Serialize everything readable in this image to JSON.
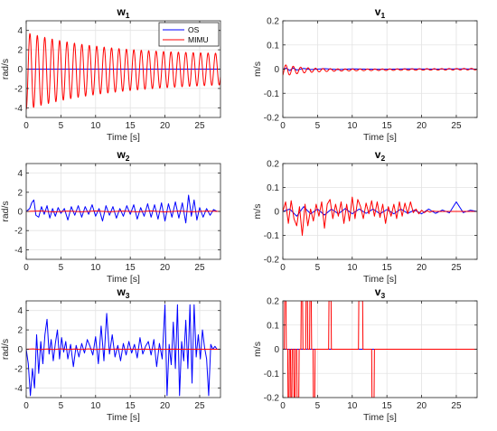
{
  "figure": {
    "background": "#ffffff"
  },
  "colors": {
    "OS": "#0000ff",
    "MIMU": "#ff0000",
    "grid": "#e3e3e3",
    "axis": "#262626"
  },
  "chart_data": [
    {
      "type": "line",
      "title": "w",
      "title_subscript": "1",
      "xlabel": "Time [s]",
      "ylabel": "rad/s",
      "xlim": [
        0,
        28
      ],
      "ylim": [
        -5,
        5
      ],
      "xticks": [
        0,
        5,
        10,
        15,
        20,
        25
      ],
      "yticks": [
        4,
        2,
        0,
        -2,
        -4
      ],
      "grid": true,
      "legend": {
        "position": "top-right",
        "entries": [
          "OS",
          "MIMU"
        ]
      },
      "series": [
        {
          "name": "OS",
          "color": "#0000ff",
          "x": [
            0,
            28
          ],
          "y": [
            0,
            0
          ],
          "note_overlap": ""
        },
        {
          "name": "MIMU",
          "color": "#ff0000",
          "signal": {
            "kind": "damped_sine",
            "amplitude": 4.0,
            "offset_start": -0.2,
            "offset_end": 0.0,
            "period": 1.07,
            "decay_floor": 0.35,
            "decay_rate": 0.085,
            "phase_start": 0.0
          }
        }
      ]
    },
    {
      "type": "line",
      "title": "v",
      "title_subscript": "1",
      "xlabel": "Time [s]",
      "ylabel": "m/s",
      "xlim": [
        0,
        28
      ],
      "ylim": [
        -0.2,
        0.2
      ],
      "xticks": [
        0,
        5,
        10,
        15,
        20,
        25
      ],
      "yticks": [
        0.2,
        0.1,
        0,
        -0.1,
        -0.2
      ],
      "grid": true,
      "series": [
        {
          "name": "OS",
          "color": "#0000ff",
          "x": [
            0,
            0.5,
            1,
            1.5,
            2,
            3,
            4,
            6,
            8,
            10,
            14,
            18,
            22,
            26,
            28
          ],
          "y": [
            0,
            0.004,
            -0.006,
            0.005,
            -0.004,
            0.003,
            -0.002,
            0.002,
            -0.002,
            0.001,
            -0.001,
            0.001,
            0,
            0.001,
            0
          ]
        },
        {
          "name": "MIMU",
          "color": "#ff0000",
          "signal": {
            "kind": "damped_sine",
            "amplitude": 0.025,
            "offset_start": -0.005,
            "offset_end": 0.0,
            "period": 1.07,
            "decay_floor": 0.12,
            "decay_rate": 0.32,
            "phase_start": 0.6
          }
        }
      ]
    },
    {
      "type": "line",
      "title": "w",
      "title_subscript": "2",
      "xlabel": "Time [s]",
      "ylabel": "rad/s",
      "xlim": [
        0,
        28
      ],
      "ylim": [
        -5,
        5
      ],
      "xticks": [
        0,
        5,
        10,
        15,
        20,
        25
      ],
      "yticks": [
        4,
        2,
        0,
        -2,
        -4
      ],
      "grid": true,
      "series": [
        {
          "name": "OS",
          "color": "#0000ff",
          "x": [
            0,
            0.5,
            0.8,
            1.1,
            1.4,
            1.8,
            2.2,
            2.6,
            3.0,
            3.4,
            3.8,
            4.2,
            4.6,
            5.0,
            5.5,
            6.0,
            6.5,
            7.0,
            7.5,
            8.0,
            8.5,
            9.0,
            9.5,
            10.0,
            10.5,
            11.0,
            11.5,
            12.0,
            12.5,
            13.0,
            13.5,
            14.0,
            14.5,
            15.0,
            15.5,
            16.0,
            16.5,
            17.0,
            17.5,
            18.0,
            18.5,
            19.0,
            19.5,
            20.0,
            20.5,
            21.0,
            21.5,
            22.0,
            22.5,
            23.0,
            23.4,
            23.8,
            24.2,
            24.6,
            25.0,
            25.5,
            26.0,
            26.5,
            27.0,
            27.5
          ],
          "y": [
            0,
            0.3,
            0.9,
            1.2,
            -0.4,
            -0.6,
            0.5,
            -0.3,
            0.6,
            -0.7,
            0.3,
            -0.5,
            0.4,
            -0.2,
            0.3,
            -0.9,
            0.5,
            -0.4,
            0.6,
            -0.6,
            0.5,
            -0.3,
            0.7,
            -0.5,
            0.3,
            -1.0,
            0.6,
            -0.4,
            0.5,
            -0.7,
            0.3,
            -0.5,
            0.6,
            -0.3,
            0.7,
            -0.8,
            0.4,
            -0.5,
            0.8,
            -0.6,
            0.7,
            -0.8,
            0.9,
            -1.0,
            0.8,
            -0.6,
            1.0,
            -0.7,
            0.9,
            -1.2,
            1.7,
            -0.5,
            1.2,
            -0.9,
            0.4,
            -0.6,
            0.3,
            -0.4,
            0.2,
            0.0
          ]
        },
        {
          "name": "MIMU",
          "color": "#ff0000",
          "x": [
            0,
            2,
            4,
            6,
            8,
            10,
            12,
            14,
            16,
            18,
            20,
            22,
            24,
            26,
            28
          ],
          "y": [
            0,
            0.05,
            -0.05,
            0.04,
            -0.04,
            0.05,
            -0.03,
            0.04,
            -0.04,
            0.05,
            -0.05,
            0.04,
            -0.03,
            0.03,
            0
          ]
        }
      ]
    },
    {
      "type": "line",
      "title": "v",
      "title_subscript": "2",
      "xlabel": "Time [s]",
      "ylabel": "m/s",
      "xlim": [
        0,
        28
      ],
      "ylim": [
        -0.2,
        0.2
      ],
      "xticks": [
        0,
        5,
        10,
        15,
        20,
        25
      ],
      "yticks": [
        0.2,
        0.1,
        0,
        -0.1,
        -0.2
      ],
      "grid": true,
      "series": [
        {
          "name": "OS",
          "color": "#0000ff",
          "x": [
            0,
            1,
            2,
            3,
            4,
            5,
            6,
            7,
            8,
            9,
            10,
            11,
            12,
            13,
            14,
            15,
            16,
            17,
            18,
            19,
            20,
            21,
            22,
            23,
            24,
            25,
            26,
            27,
            28
          ],
          "y": [
            0,
            0.01,
            -0.02,
            0.02,
            -0.01,
            0.01,
            -0.015,
            0.01,
            -0.01,
            0.012,
            -0.01,
            0.01,
            -0.008,
            0.01,
            -0.01,
            0.008,
            -0.01,
            0.01,
            -0.008,
            0.006,
            -0.01,
            0.01,
            -0.008,
            0.006,
            -0.006,
            0.04,
            -0.005,
            0.005,
            0
          ]
        },
        {
          "name": "MIMU",
          "color": "#ff0000",
          "x": [
            0,
            0.4,
            0.8,
            1.2,
            1.6,
            2.0,
            2.4,
            2.8,
            3.2,
            3.6,
            4.0,
            4.4,
            4.8,
            5.2,
            5.6,
            6.0,
            6.4,
            6.8,
            7.2,
            7.6,
            8.0,
            8.4,
            8.8,
            9.2,
            9.6,
            10.0,
            10.4,
            10.8,
            11.2,
            11.6,
            12.0,
            12.4,
            12.8,
            13.2,
            13.6,
            14.0,
            14.4,
            14.8,
            15.2,
            15.6,
            16.0,
            16.4,
            16.8,
            17.2,
            17.6,
            18.0,
            18.4,
            18.8,
            19.2,
            19.6,
            20.0,
            20.4,
            20.8,
            21.2,
            21.6,
            22.0,
            23.0,
            24.0,
            25.0,
            26.0,
            27.0,
            28.0
          ],
          "y": [
            0,
            0.04,
            -0.05,
            0.045,
            -0.03,
            -0.06,
            0.02,
            -0.1,
            0.03,
            -0.06,
            0.01,
            -0.04,
            0.03,
            -0.02,
            0.04,
            -0.07,
            0.03,
            0.05,
            -0.03,
            0.03,
            -0.02,
            0.04,
            -0.05,
            0.03,
            -0.04,
            0.06,
            -0.03,
            0.05,
            0.02,
            -0.03,
            0.035,
            -0.01,
            0.045,
            -0.02,
            0.04,
            -0.025,
            0.03,
            -0.05,
            0.02,
            -0.02,
            0.03,
            -0.03,
            0.04,
            -0.02,
            0.035,
            -0.01,
            0.04,
            -0.005,
            0.01,
            -0.01,
            0.005,
            -0.005,
            0.003,
            -0.003,
            0.002,
            0,
            0,
            0,
            0,
            0,
            0,
            0
          ]
        }
      ]
    },
    {
      "type": "line",
      "title": "w",
      "title_subscript": "3",
      "xlabel": "Time [s]",
      "ylabel": "rad/s",
      "xlim": [
        0,
        28
      ],
      "ylim": [
        -5,
        5
      ],
      "xticks": [
        0,
        5,
        10,
        15,
        20,
        25
      ],
      "yticks": [
        4,
        2,
        0,
        -2,
        -4
      ],
      "grid": true,
      "series": [
        {
          "name": "OS",
          "color": "#0000ff",
          "x": [
            0,
            0.3,
            0.6,
            0.9,
            1.2,
            1.5,
            1.8,
            2.1,
            2.4,
            2.7,
            3.0,
            3.3,
            3.6,
            3.9,
            4.2,
            4.5,
            4.8,
            5.1,
            5.4,
            5.7,
            6.0,
            6.4,
            6.8,
            7.2,
            7.6,
            8.0,
            8.4,
            8.8,
            9.2,
            9.6,
            10.0,
            10.4,
            10.8,
            11.2,
            11.6,
            12.0,
            12.4,
            12.8,
            13.2,
            13.6,
            14.0,
            14.4,
            14.8,
            15.2,
            15.6,
            16.0,
            16.4,
            16.8,
            17.2,
            17.6,
            18.0,
            18.4,
            18.8,
            19.2,
            19.6,
            20.0,
            20.3,
            20.6,
            20.9,
            21.2,
            21.5,
            21.8,
            22.1,
            22.4,
            22.7,
            23.0,
            23.3,
            23.6,
            23.9,
            24.2,
            24.5,
            24.8,
            25.1,
            25.4,
            25.7,
            26.0,
            26.3,
            26.6,
            26.9,
            27.2,
            27.5
          ],
          "y": [
            0,
            -1.5,
            -4.8,
            -2.0,
            -4.0,
            1.5,
            -2.5,
            0.8,
            -1.5,
            1.5,
            3.1,
            -0.5,
            1.0,
            -1.2,
            0.6,
            2.0,
            -1.0,
            1.2,
            -0.3,
            0.8,
            -1.0,
            0.5,
            -1.8,
            0.4,
            -0.8,
            0.6,
            -0.4,
            1.0,
            0.3,
            -0.6,
            1.3,
            -1.5,
            2.4,
            -1.2,
            3.7,
            -0.5,
            1.5,
            -0.8,
            0.4,
            -1.2,
            0.6,
            -0.6,
            0.8,
            -0.4,
            0.5,
            -0.9,
            1.2,
            -0.5,
            0.3,
            0.8,
            -0.6,
            1.0,
            -1.8,
            0.6,
            -1.0,
            4.6,
            -4.8,
            0.5,
            -1.6,
            2.8,
            -2.0,
            4.6,
            -4.8,
            0.8,
            -1.2,
            3.0,
            -2.0,
            4.6,
            -3.5,
            4.6,
            -0.8,
            1.5,
            -1.0,
            2.0,
            0.2,
            -1.0,
            -4.8,
            0.5,
            0.0,
            0.3,
            0.0
          ]
        },
        {
          "name": "MIMU",
          "color": "#ff0000",
          "x": [
            0,
            1,
            2,
            3,
            4,
            5,
            6,
            7,
            8,
            9,
            10,
            11,
            12,
            13,
            14,
            15,
            16,
            17,
            18,
            19,
            20,
            21,
            22,
            23,
            24,
            25,
            26,
            27,
            28
          ],
          "y": [
            0,
            0.03,
            -0.03,
            0.02,
            -0.02,
            0.03,
            -0.02,
            0.02,
            -0.02,
            0.03,
            -0.02,
            0.02,
            -0.02,
            0.02,
            -0.01,
            0.01,
            -0.01,
            0.01,
            -0.01,
            0.01,
            -0.01,
            0.01,
            0,
            0,
            0,
            0,
            0,
            0,
            0
          ]
        }
      ]
    },
    {
      "type": "line",
      "title": "v",
      "title_subscript": "3",
      "xlabel": "Time [s]",
      "ylabel": "m/s",
      "xlim": [
        0,
        28
      ],
      "ylim": [
        -0.2,
        0.2
      ],
      "xticks": [
        0,
        5,
        10,
        15,
        20,
        25
      ],
      "yticks": [
        0.2,
        0.1,
        0,
        -0.1,
        -0.2
      ],
      "grid": true,
      "series": [
        {
          "name": "OS",
          "color": "#0000ff",
          "x": [
            0,
            28
          ],
          "y": [
            0,
            0
          ]
        },
        {
          "name": "MIMU",
          "color": "#ff0000",
          "x": [
            0,
            0.2,
            0.25,
            0.45,
            0.5,
            0.7,
            0.75,
            0.9,
            0.95,
            1.1,
            1.15,
            1.3,
            1.35,
            1.55,
            1.6,
            1.75,
            1.8,
            2.0,
            2.05,
            2.3,
            2.35,
            2.6,
            2.65,
            2.85,
            2.9,
            3.3,
            3.35,
            3.55,
            3.6,
            3.85,
            3.9,
            4.1,
            4.15,
            4.35,
            4.4,
            4.6,
            4.65,
            6.6,
            6.65,
            6.95,
            7.0,
            10.9,
            10.95,
            11.5,
            11.55,
            12.8,
            12.85,
            13.15,
            13.2,
            28
          ],
          "y": [
            0,
            0,
            0.2,
            0.2,
            0,
            0,
            -0.2,
            -0.2,
            0,
            0,
            -0.2,
            -0.2,
            0,
            0,
            -0.2,
            -0.2,
            0,
            0,
            -0.2,
            -0.2,
            0,
            0,
            0.2,
            0.2,
            0,
            0,
            0.2,
            0.2,
            0,
            0,
            0.2,
            0.2,
            0,
            0,
            -0.2,
            -0.2,
            0,
            0,
            0.2,
            0.2,
            0,
            0,
            0.2,
            0.2,
            0,
            0,
            -0.2,
            -0.2,
            0,
            0
          ]
        }
      ]
    }
  ]
}
